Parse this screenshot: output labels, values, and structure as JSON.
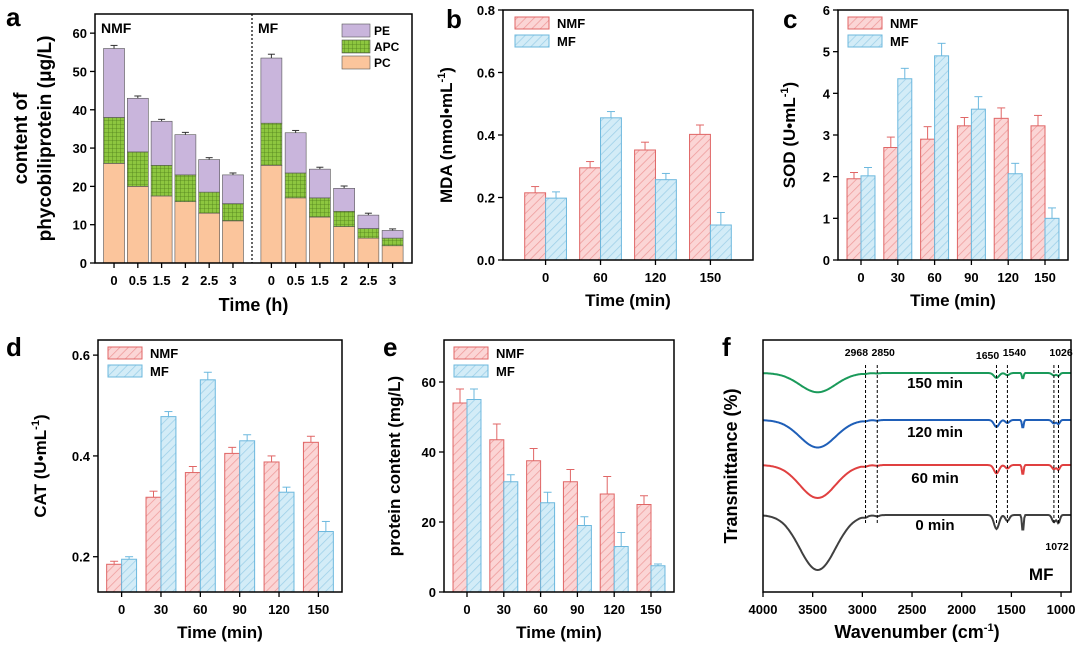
{
  "colors": {
    "nmf_fill": "#f9c9c9",
    "nmf_stroke": "#e06666",
    "mf_fill": "#c6e6f5",
    "mf_stroke": "#6cb8de",
    "pc": "#fbc59c",
    "apc": "#8dc63f",
    "pe": "#c9b5dc",
    "err": "#333333",
    "ftir_0": "#404040",
    "ftir_60": "#e04040",
    "ftir_120": "#1f5fb8",
    "ftir_150": "#1a9a5a"
  },
  "chart_data": [
    {
      "panel": "a",
      "type": "bar",
      "stacked": true,
      "ylabel_lines": [
        "content of",
        "phycobiliprotein (μg/L)"
      ],
      "xlabel": "Time (h)",
      "ylim": [
        0,
        65
      ],
      "yticks": [
        0,
        10,
        20,
        30,
        40,
        50,
        60
      ],
      "group_labels": [
        "NMF",
        "MF"
      ],
      "categories": [
        "0",
        "0.5",
        "1.5",
        "2",
        "2.5",
        "3"
      ],
      "legend": [
        "PE",
        "APC",
        "PC"
      ],
      "groups": [
        {
          "name": "NMF",
          "PC": [
            26,
            20,
            17.5,
            16,
            13,
            11
          ],
          "APC": [
            12,
            9,
            8,
            7,
            5.5,
            4.5
          ],
          "PE": [
            18,
            14,
            11.5,
            10.5,
            8.5,
            7.5
          ],
          "total_err": [
            0.8,
            0.6,
            0.5,
            0.6,
            0.5,
            0.5
          ]
        },
        {
          "name": "MF",
          "PC": [
            25.5,
            17,
            12,
            9.5,
            6.5,
            4.5
          ],
          "APC": [
            11,
            6.5,
            5,
            4,
            2.5,
            2
          ],
          "PE": [
            17,
            10.5,
            7.5,
            6,
            3.5,
            2
          ],
          "total_err": [
            1,
            0.6,
            0.5,
            0.6,
            0.5,
            0.4
          ]
        }
      ]
    },
    {
      "panel": "b",
      "type": "bar",
      "ylabel": "MDA (nmol•mL",
      "ylabel_sup": "-1",
      "ylabel_end": ")",
      "xlabel": "Time (min)",
      "ylim": [
        0,
        0.8
      ],
      "yticks": [
        "0.0",
        "0.2",
        "0.4",
        "0.6",
        "0.8"
      ],
      "categories": [
        "0",
        "60",
        "120",
        "150"
      ],
      "legend": [
        "NMF",
        "MF"
      ],
      "series": [
        {
          "name": "NMF",
          "values": [
            0.215,
            0.295,
            0.352,
            0.402
          ],
          "err": [
            0.02,
            0.02,
            0.025,
            0.03
          ]
        },
        {
          "name": "MF",
          "values": [
            0.198,
            0.455,
            0.257,
            0.112
          ],
          "err": [
            0.02,
            0.02,
            0.02,
            0.04
          ]
        }
      ]
    },
    {
      "panel": "c",
      "type": "bar",
      "ylabel": "SOD (U•mL",
      "ylabel_sup": "-1",
      "ylabel_end": ")",
      "xlabel": "Time (min)",
      "ylim": [
        0,
        6
      ],
      "yticks": [
        "0",
        "1",
        "2",
        "3",
        "4",
        "5",
        "6"
      ],
      "categories": [
        "0",
        "30",
        "60",
        "90",
        "120",
        "150"
      ],
      "legend": [
        "NMF",
        "MF"
      ],
      "series": [
        {
          "name": "NMF",
          "values": [
            1.95,
            2.7,
            2.9,
            3.22,
            3.4,
            3.22
          ],
          "err": [
            0.15,
            0.25,
            0.3,
            0.2,
            0.25,
            0.25
          ]
        },
        {
          "name": "MF",
          "values": [
            2.02,
            4.35,
            4.9,
            3.62,
            2.07,
            1.0
          ],
          "err": [
            0.2,
            0.25,
            0.3,
            0.3,
            0.25,
            0.25
          ]
        }
      ]
    },
    {
      "panel": "d",
      "type": "bar",
      "ylabel": "CAT (U•mL",
      "ylabel_sup": "-1",
      "ylabel_end": ")",
      "xlabel": "Time (min)",
      "ylim": [
        0.13,
        0.63
      ],
      "yticks": [
        "0.2",
        "0.4",
        "0.6"
      ],
      "ytick_values": [
        0.2,
        0.4,
        0.6
      ],
      "categories": [
        "0",
        "30",
        "60",
        "90",
        "120",
        "150"
      ],
      "legend": [
        "NMF",
        "MF"
      ],
      "series": [
        {
          "name": "NMF",
          "values": [
            0.185,
            0.318,
            0.367,
            0.405,
            0.388,
            0.427
          ],
          "err": [
            0.006,
            0.012,
            0.012,
            0.012,
            0.012,
            0.012
          ]
        },
        {
          "name": "MF",
          "values": [
            0.195,
            0.478,
            0.551,
            0.43,
            0.328,
            0.25
          ],
          "err": [
            0.005,
            0.01,
            0.015,
            0.012,
            0.01,
            0.02
          ]
        }
      ]
    },
    {
      "panel": "e",
      "type": "bar",
      "ylabel": "protein content (mg/L)",
      "xlabel": "Time (min)",
      "ylim": [
        0,
        72
      ],
      "yticks": [
        "0",
        "20",
        "40",
        "60"
      ],
      "ytick_values": [
        0,
        20,
        40,
        60
      ],
      "categories": [
        "0",
        "30",
        "60",
        "90",
        "120",
        "150"
      ],
      "legend": [
        "NMF",
        "MF"
      ],
      "series": [
        {
          "name": "NMF",
          "values": [
            54,
            43.5,
            37.5,
            31.5,
            28,
            25
          ],
          "err": [
            4,
            4.5,
            3.5,
            3.5,
            5,
            2.5
          ]
        },
        {
          "name": "MF",
          "values": [
            55,
            31.5,
            25.5,
            19,
            13,
            7.5
          ],
          "err": [
            3,
            2,
            3,
            2.5,
            4,
            0.5
          ]
        }
      ]
    },
    {
      "panel": "f",
      "type": "line",
      "ylabel": "Transmittance (%)",
      "xlabel": "Wavenumber (cm",
      "xlabel_sup": "-1",
      "xlabel_end": ")",
      "xlim": [
        4000,
        900
      ],
      "xticks": [
        "4000",
        "3500",
        "3000",
        "2500",
        "2000",
        "1500",
        "1000"
      ],
      "annotation": "MF",
      "peaks": [
        "2968",
        "2850",
        "1650",
        "1540",
        "1026",
        "1072"
      ],
      "series": [
        {
          "name": "150 min",
          "color_key": "ftir_150"
        },
        {
          "name": "120 min",
          "color_key": "ftir_120"
        },
        {
          "name": "60 min",
          "color_key": "ftir_60"
        },
        {
          "name": "0 min",
          "color_key": "ftir_0"
        }
      ]
    }
  ]
}
